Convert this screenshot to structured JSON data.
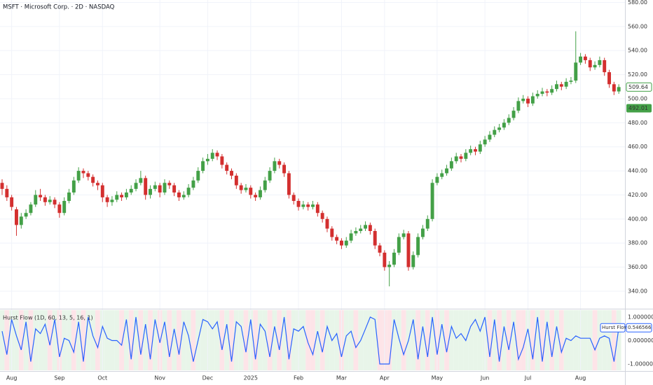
{
  "chart_data": {
    "type": "candlestick",
    "title": "MSFT · Microsoft Corp. · 2D · NASDAQ",
    "up_color": "#43a047",
    "down_color": "#d32f2f",
    "ylim": [
      326,
      582
    ],
    "yticks": [
      {
        "value": 340,
        "label": "340.00"
      },
      {
        "value": 360,
        "label": "360.00"
      },
      {
        "value": 380,
        "label": "380.00"
      },
      {
        "value": 400,
        "label": "400.00"
      },
      {
        "value": 420,
        "label": "420.00"
      },
      {
        "value": 440,
        "label": "440.00"
      },
      {
        "value": 460,
        "label": "460.00"
      },
      {
        "value": 480,
        "label": "480.00"
      },
      {
        "value": 500,
        "label": "500.00"
      },
      {
        "value": 520,
        "label": "520.00"
      },
      {
        "value": 540,
        "label": "540.00"
      },
      {
        "value": 560,
        "label": "560.00"
      },
      {
        "value": 580,
        "label": "580.00"
      }
    ],
    "last_price": 509.64,
    "marker_price": 492.01,
    "categories": [
      null,
      null,
      "Aug",
      null,
      null,
      null,
      null,
      null,
      null,
      null,
      null,
      null,
      "Sep",
      null,
      null,
      null,
      null,
      null,
      null,
      null,
      null,
      "Oct",
      null,
      null,
      null,
      null,
      null,
      null,
      null,
      null,
      null,
      null,
      null,
      "Nov",
      null,
      null,
      null,
      null,
      null,
      null,
      null,
      null,
      null,
      "Dec",
      null,
      null,
      null,
      null,
      null,
      null,
      null,
      null,
      "2025",
      null,
      null,
      null,
      null,
      null,
      null,
      null,
      null,
      null,
      "Feb",
      null,
      null,
      null,
      null,
      null,
      null,
      null,
      null,
      "Mar",
      null,
      null,
      null,
      null,
      null,
      null,
      null,
      null,
      "Apr",
      null,
      null,
      null,
      null,
      null,
      null,
      null,
      null,
      null,
      null,
      "May",
      null,
      null,
      null,
      null,
      null,
      null,
      null,
      null,
      null,
      "Jun",
      null,
      null,
      null,
      null,
      null,
      null,
      null,
      null,
      "Jul",
      null,
      null,
      null,
      null,
      null,
      null,
      null,
      null,
      null,
      null,
      "Aug",
      null,
      null,
      null,
      null,
      null,
      null,
      null,
      null
    ],
    "candles": [
      [
        430,
        433,
        420,
        425
      ],
      [
        425,
        428,
        415,
        418
      ],
      [
        418,
        420,
        407,
        410
      ],
      [
        408,
        410,
        386,
        395
      ],
      [
        395,
        405,
        392,
        402
      ],
      [
        402,
        408,
        400,
        405
      ],
      [
        405,
        414,
        403,
        412
      ],
      [
        412,
        424,
        410,
        420
      ],
      [
        420,
        425,
        415,
        418
      ],
      [
        418,
        420,
        411,
        414
      ],
      [
        414,
        419,
        412,
        416
      ],
      [
        416,
        418,
        409,
        412
      ],
      [
        412,
        414,
        401,
        405
      ],
      [
        405,
        418,
        403,
        415
      ],
      [
        415,
        425,
        413,
        422
      ],
      [
        422,
        435,
        420,
        432
      ],
      [
        432,
        443,
        430,
        440
      ],
      [
        440,
        442,
        434,
        438
      ],
      [
        438,
        440,
        432,
        435
      ],
      [
        435,
        437,
        427,
        430
      ],
      [
        430,
        432,
        424,
        428
      ],
      [
        428,
        430,
        414,
        418
      ],
      [
        418,
        420,
        410,
        414
      ],
      [
        414,
        419,
        411,
        416
      ],
      [
        416,
        423,
        414,
        420
      ],
      [
        420,
        422,
        415,
        418
      ],
      [
        418,
        425,
        416,
        422
      ],
      [
        422,
        428,
        420,
        425
      ],
      [
        425,
        433,
        423,
        430
      ],
      [
        430,
        440,
        428,
        434
      ],
      [
        434,
        436,
        416,
        420
      ],
      [
        420,
        428,
        417,
        425
      ],
      [
        425,
        431,
        423,
        428
      ],
      [
        428,
        430,
        418,
        422
      ],
      [
        422,
        433,
        420,
        430
      ],
      [
        430,
        432,
        425,
        428
      ],
      [
        428,
        430,
        419,
        422
      ],
      [
        422,
        424,
        415,
        418
      ],
      [
        418,
        423,
        416,
        420
      ],
      [
        420,
        429,
        418,
        426
      ],
      [
        426,
        435,
        424,
        432
      ],
      [
        432,
        443,
        430,
        440
      ],
      [
        440,
        451,
        438,
        448
      ],
      [
        448,
        454,
        445,
        450
      ],
      [
        450,
        458,
        448,
        455
      ],
      [
        455,
        457,
        449,
        452
      ],
      [
        452,
        454,
        442,
        445
      ],
      [
        445,
        447,
        437,
        440
      ],
      [
        440,
        442,
        433,
        436
      ],
      [
        436,
        438,
        425,
        428
      ],
      [
        428,
        430,
        421,
        424
      ],
      [
        424,
        429,
        422,
        426
      ],
      [
        426,
        428,
        417,
        420
      ],
      [
        420,
        422,
        415,
        418
      ],
      [
        418,
        427,
        416,
        424
      ],
      [
        424,
        435,
        422,
        432
      ],
      [
        432,
        443,
        430,
        440
      ],
      [
        440,
        451,
        438,
        448
      ],
      [
        448,
        450,
        442,
        445
      ],
      [
        445,
        447,
        435,
        438
      ],
      [
        438,
        440,
        417,
        420
      ],
      [
        420,
        422,
        412,
        415
      ],
      [
        415,
        417,
        407,
        410
      ],
      [
        410,
        415,
        408,
        412
      ],
      [
        412,
        414,
        407,
        410
      ],
      [
        410,
        415,
        408,
        412
      ],
      [
        412,
        414,
        402,
        405
      ],
      [
        405,
        407,
        397,
        400
      ],
      [
        400,
        402,
        389,
        392
      ],
      [
        392,
        394,
        382,
        385
      ],
      [
        385,
        387,
        379,
        382
      ],
      [
        382,
        384,
        375,
        378
      ],
      [
        378,
        385,
        376,
        382
      ],
      [
        382,
        391,
        380,
        388
      ],
      [
        388,
        393,
        386,
        390
      ],
      [
        390,
        395,
        388,
        392
      ],
      [
        392,
        398,
        390,
        395
      ],
      [
        395,
        397,
        387,
        390
      ],
      [
        390,
        392,
        375,
        378
      ],
      [
        378,
        380,
        369,
        372
      ],
      [
        372,
        374,
        357,
        360
      ],
      [
        360,
        365,
        344,
        362
      ],
      [
        362,
        375,
        360,
        372
      ],
      [
        372,
        388,
        370,
        385
      ],
      [
        385,
        391,
        383,
        388
      ],
      [
        388,
        390,
        357,
        360
      ],
      [
        360,
        373,
        358,
        370
      ],
      [
        370,
        388,
        368,
        385
      ],
      [
        385,
        395,
        383,
        392
      ],
      [
        392,
        403,
        390,
        400
      ],
      [
        400,
        433,
        398,
        430
      ],
      [
        430,
        438,
        428,
        435
      ],
      [
        435,
        441,
        433,
        438
      ],
      [
        438,
        445,
        436,
        442
      ],
      [
        442,
        451,
        440,
        448
      ],
      [
        448,
        455,
        446,
        452
      ],
      [
        452,
        454,
        447,
        450
      ],
      [
        450,
        458,
        448,
        455
      ],
      [
        455,
        461,
        453,
        458
      ],
      [
        458,
        460,
        453,
        456
      ],
      [
        456,
        465,
        454,
        462
      ],
      [
        462,
        469,
        460,
        466
      ],
      [
        466,
        473,
        464,
        470
      ],
      [
        470,
        477,
        468,
        474
      ],
      [
        474,
        479,
        472,
        476
      ],
      [
        476,
        483,
        474,
        480
      ],
      [
        480,
        487,
        478,
        484
      ],
      [
        484,
        493,
        482,
        490
      ],
      [
        490,
        501,
        488,
        498
      ],
      [
        498,
        503,
        496,
        500
      ],
      [
        500,
        502,
        493,
        496
      ],
      [
        496,
        505,
        494,
        502
      ],
      [
        502,
        507,
        500,
        504
      ],
      [
        504,
        509,
        502,
        506
      ],
      [
        506,
        508,
        502,
        505
      ],
      [
        505,
        511,
        503,
        508
      ],
      [
        508,
        515,
        506,
        512
      ],
      [
        512,
        514,
        507,
        510
      ],
      [
        510,
        517,
        508,
        514
      ],
      [
        514,
        518,
        512,
        515
      ],
      [
        515,
        556,
        513,
        530
      ],
      [
        530,
        538,
        528,
        535
      ],
      [
        535,
        537,
        529,
        532
      ],
      [
        532,
        534,
        523,
        526
      ],
      [
        526,
        531,
        524,
        528
      ],
      [
        528,
        535,
        526,
        532
      ],
      [
        532,
        534,
        519,
        522
      ],
      [
        522,
        524,
        509,
        512
      ],
      [
        512,
        514,
        503,
        506
      ],
      [
        506,
        512,
        504,
        509.64
      ]
    ],
    "indicator": {
      "title": "Hurst Flow (1D, 60, 13, 5, 16, 1)",
      "name": "Hurst Flow",
      "color": "#2962ff",
      "pos_band": "#e8f5e9",
      "neg_band": "#fde4e8",
      "ylim": [
        -1.3,
        1.3
      ],
      "yticks": [
        {
          "value": 1,
          "label": "1.000000"
        },
        {
          "value": 0,
          "label": "0.000000"
        },
        {
          "value": -1,
          "label": "-1.000000"
        }
      ],
      "values": [
        0.4,
        -0.6,
        0.9,
        0.2,
        -0.4,
        0.8,
        -0.9,
        0.5,
        0.3,
        0.7,
        -0.2,
        0.9,
        -0.7,
        0.1,
        0.0,
        -0.5,
        0.8,
        -0.9,
        1.0,
        0.2,
        -0.3,
        0.6,
        0.1,
        0.0,
        0.0,
        -0.2,
        0.9,
        -0.8,
        1.0,
        -0.6,
        0.7,
        -0.8,
        0.9,
        -0.1,
        0.8,
        -0.7,
        0.5,
        -0.6,
        0.8,
        0.2,
        -0.9,
        0.0,
        0.9,
        0.8,
        0.5,
        0.8,
        -0.4,
        0.7,
        -0.9,
        0.8,
        0.6,
        -0.5,
        0.9,
        -0.8,
        0.7,
        0.4,
        -0.7,
        0.6,
        -0.4,
        1.0,
        -0.8,
        0.5,
        0.4,
        0.6,
        -0.1,
        -0.6,
        0.4,
        -0.5,
        0.6,
        0.0,
        0.3,
        -0.7,
        0.2,
        0.4,
        -0.3,
        0.0,
        0.5,
        1.0,
        0.9,
        -1.0,
        -1.0,
        -1.0,
        0.9,
        0.1,
        -0.6,
        0.0,
        0.9,
        -0.8,
        0.6,
        -0.7,
        1.0,
        -0.6,
        0.7,
        -0.5,
        0.6,
        0.1,
        0.3,
        0.0,
        0.6,
        0.9,
        0.4,
        1.0,
        -0.7,
        0.9,
        -0.9,
        0.6,
        -0.4,
        0.8,
        -0.8,
        -0.3,
        0.5,
        -0.8,
        1.0,
        -0.9,
        0.8,
        -0.7,
        0.6,
        -0.5,
        0.1,
        0.0,
        0.2,
        0.1,
        0.1,
        0.1,
        -0.4,
        0.1,
        0.2,
        0.1,
        -0.9,
        0.546566
      ]
    }
  }
}
